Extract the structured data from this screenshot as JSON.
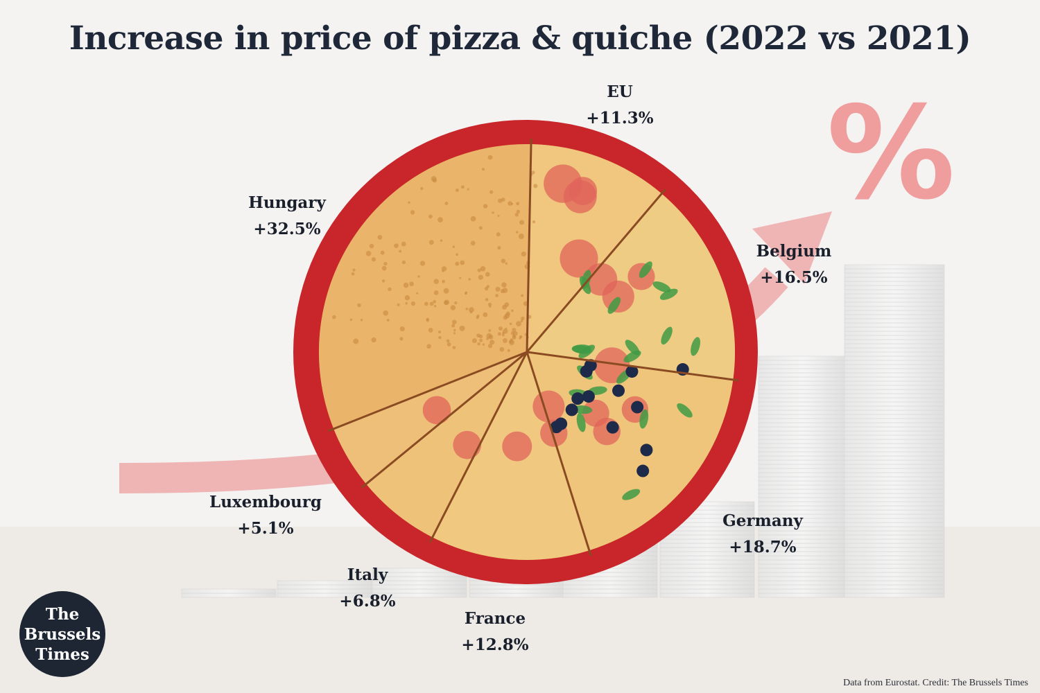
{
  "title": "Increase in price of pizza & quiche (2022 vs 2021)",
  "credit": "Data from Eurostat. Credit: The Brussels Times",
  "logo": {
    "line1": "The",
    "line2": "Brussels",
    "line3": "Times"
  },
  "chart_data": {
    "type": "pie",
    "title": "Increase in price of pizza & quiche (2022 vs 2021)",
    "unit": "%",
    "slices": [
      {
        "name": "EU",
        "label": "+11.3%",
        "value": 11.3
      },
      {
        "name": "Belgium",
        "label": "+16.5%",
        "value": 16.5
      },
      {
        "name": "Germany",
        "label": "+18.7%",
        "value": 18.7
      },
      {
        "name": "France",
        "label": "+12.8%",
        "value": 12.8
      },
      {
        "name": "Italy",
        "label": "+6.8%",
        "value": 6.8
      },
      {
        "name": "Luxembourg",
        "label": "+5.1%",
        "value": 5.1
      },
      {
        "name": "Hungary",
        "label": "+32.5%",
        "value": 32.5
      }
    ]
  },
  "decor": {
    "percent_symbol": "%",
    "ring_color": "#c8262a",
    "crust_color": "#e3a24e",
    "arrow_color": "#efb5b5"
  }
}
